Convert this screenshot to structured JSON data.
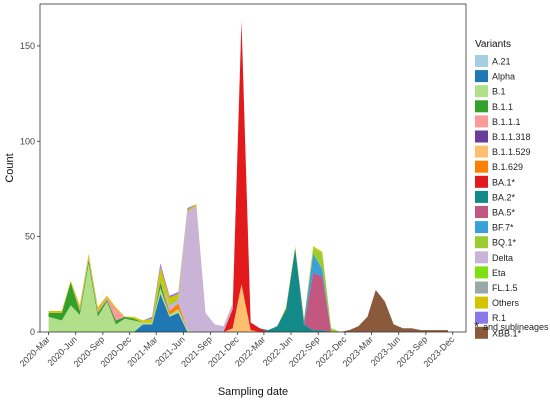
{
  "chart_data": {
    "type": "area",
    "stacked": true,
    "xlabel": "Sampling date",
    "ylabel": "Count",
    "ylim": [
      0,
      172
    ],
    "yticks": [
      0,
      50,
      100,
      150
    ],
    "xlim": [
      "2020-02-01",
      "2024-01-15"
    ],
    "xticks": [
      "2020-Mar",
      "2020-Jun",
      "2020-Sep",
      "2020-Dec",
      "2021-Mar",
      "2021-Jun",
      "2021-Sep",
      "2021-Dec",
      "2022-Mar",
      "2022-Jun",
      "2022-Sep",
      "2022-Dec",
      "2023-Mar",
      "2023-Jun",
      "2023-Sep",
      "2023-Dec"
    ],
    "grid": false,
    "legend_title": "Variants",
    "legend_position": "right",
    "footnote_star": "*",
    "footnote_text": "and sublineages",
    "x": [
      "2020-03-01",
      "2020-04-15",
      "2020-05-15",
      "2020-06-15",
      "2020-07-15",
      "2020-08-15",
      "2020-09-15",
      "2020-10-15",
      "2020-11-15",
      "2020-12-15",
      "2021-01-15",
      "2021-02-15",
      "2021-03-15",
      "2021-04-15",
      "2021-05-15",
      "2021-06-15",
      "2021-07-15",
      "2021-08-15",
      "2021-09-15",
      "2021-10-15",
      "2021-11-15",
      "2021-12-15",
      "2022-01-15",
      "2022-02-15",
      "2022-03-15",
      "2022-04-15",
      "2022-05-15",
      "2022-06-15",
      "2022-07-15",
      "2022-08-15",
      "2022-09-15",
      "2022-10-15",
      "2022-11-15",
      "2022-12-15",
      "2023-01-15",
      "2023-02-15",
      "2023-03-15",
      "2023-04-15",
      "2023-05-15",
      "2023-06-15",
      "2023-07-15",
      "2023-08-15",
      "2023-09-15",
      "2023-10-15",
      "2023-11-15"
    ],
    "series": [
      {
        "name": "A.21",
        "color": "#a6cee3",
        "values": [
          0,
          0,
          0,
          0,
          0,
          0,
          0,
          0,
          0,
          0,
          0,
          0,
          0,
          0,
          0,
          0,
          0,
          0,
          0,
          0,
          0,
          0,
          0,
          0,
          0,
          0,
          0,
          0,
          0,
          0,
          0,
          0,
          0,
          0,
          0,
          0,
          0,
          0,
          0,
          0,
          0,
          0,
          0,
          0,
          0
        ]
      },
      {
        "name": "Alpha",
        "color": "#1f78b4",
        "values": [
          0,
          0,
          0,
          0,
          0,
          0,
          0,
          0,
          0,
          0,
          4,
          4,
          20,
          8,
          10,
          0,
          0,
          0,
          0,
          0,
          0,
          0,
          0,
          0,
          0,
          0,
          0,
          0,
          0,
          0,
          0,
          0,
          0,
          0,
          0,
          0,
          0,
          0,
          0,
          0,
          0,
          0,
          0,
          0,
          0
        ]
      },
      {
        "name": "B.1",
        "color": "#b2df8a",
        "values": [
          8,
          6,
          14,
          9,
          36,
          8,
          16,
          4,
          7,
          6,
          1,
          1,
          3,
          1,
          2,
          1,
          0,
          0,
          0,
          0,
          0,
          0,
          0,
          0,
          0,
          0,
          0,
          0,
          0,
          0,
          0,
          0,
          0,
          0,
          0,
          0,
          0,
          0,
          0,
          0,
          0,
          0,
          0,
          0,
          0
        ]
      },
      {
        "name": "B.1.1",
        "color": "#33a02c",
        "values": [
          2,
          4,
          12,
          2,
          2,
          2,
          1,
          2,
          1,
          1,
          0,
          0,
          3,
          0,
          0,
          0,
          0,
          0,
          0,
          0,
          0,
          0,
          0,
          0,
          0,
          0,
          0,
          0,
          0,
          0,
          0,
          0,
          0,
          0,
          0,
          0,
          0,
          0,
          0,
          0,
          0,
          0,
          0,
          0,
          0
        ]
      },
      {
        "name": "B.1.1.1",
        "color": "#fb9a99",
        "values": [
          0,
          0,
          0,
          1,
          1,
          1,
          1,
          6,
          0,
          0,
          0,
          0,
          0,
          0,
          0,
          0,
          0,
          0,
          0,
          0,
          0,
          0,
          0,
          0,
          0,
          0,
          0,
          0,
          0,
          0,
          0,
          0,
          0,
          0,
          0,
          0,
          0,
          0,
          0,
          0,
          0,
          0,
          0,
          0,
          0
        ]
      },
      {
        "name": "B.1.1.318",
        "color": "#6a3d9a",
        "values": [
          0,
          0,
          0,
          0,
          0,
          0,
          0,
          0,
          0,
          0,
          0,
          0,
          0,
          0,
          0,
          0,
          0,
          0,
          0,
          0,
          0,
          0,
          0,
          0,
          0,
          0,
          0,
          0,
          0,
          0,
          0,
          0,
          0,
          0,
          0,
          0,
          0,
          0,
          0,
          0,
          0,
          0,
          0,
          0,
          0
        ]
      },
      {
        "name": "B.1.1.529",
        "color": "#fdbf6f",
        "values": [
          0,
          0,
          0,
          0,
          0,
          0,
          0,
          0,
          0,
          0,
          0,
          0,
          0,
          0,
          0,
          0,
          0,
          0,
          0,
          0,
          2,
          25,
          1,
          0,
          0,
          0,
          0,
          0,
          0,
          0,
          0,
          0,
          0,
          0,
          0,
          0,
          0,
          0,
          0,
          0,
          0,
          0,
          0,
          0,
          0
        ]
      },
      {
        "name": "B.1.629",
        "color": "#ff7f00",
        "values": [
          0,
          0,
          0,
          0,
          0,
          0,
          0,
          0,
          0,
          0,
          0,
          0,
          1,
          2,
          3,
          0,
          0,
          0,
          0,
          0,
          0,
          0,
          0,
          0,
          0,
          0,
          0,
          0,
          0,
          0,
          0,
          0,
          0,
          0,
          0,
          0,
          0,
          0,
          0,
          0,
          0,
          0,
          0,
          0,
          0
        ]
      },
      {
        "name": "BA.1*",
        "color": "#e31a1c",
        "values": [
          0,
          0,
          0,
          0,
          0,
          0,
          0,
          0,
          0,
          0,
          0,
          0,
          0,
          0,
          0,
          0,
          0,
          0,
          0,
          0,
          10,
          138,
          4,
          2,
          0,
          0,
          0,
          0,
          0,
          0,
          0,
          0,
          0,
          0,
          0,
          0,
          0,
          0,
          0,
          0,
          0,
          0,
          0,
          0,
          0
        ]
      },
      {
        "name": "BA.2*",
        "color": "#138a8a",
        "values": [
          0,
          0,
          0,
          0,
          0,
          0,
          0,
          0,
          0,
          0,
          0,
          0,
          0,
          0,
          0,
          0,
          0,
          0,
          0,
          0,
          0,
          0,
          0,
          0,
          1,
          3,
          12,
          44,
          4,
          1,
          1,
          0,
          0,
          0,
          0,
          0,
          0,
          0,
          0,
          0,
          0,
          0,
          0,
          0,
          0
        ]
      },
      {
        "name": "BA.5*",
        "color": "#c2577f",
        "values": [
          0,
          0,
          0,
          0,
          0,
          0,
          0,
          0,
          0,
          0,
          0,
          0,
          0,
          0,
          0,
          0,
          0,
          0,
          0,
          0,
          0,
          0,
          0,
          0,
          0,
          0,
          0,
          0,
          0,
          30,
          28,
          0,
          0,
          0,
          0,
          0,
          0,
          0,
          0,
          0,
          0,
          0,
          0,
          0,
          0
        ]
      },
      {
        "name": "BF.7*",
        "color": "#3aa0dc",
        "values": [
          0,
          0,
          0,
          0,
          0,
          0,
          0,
          0,
          0,
          0,
          0,
          0,
          0,
          0,
          0,
          0,
          0,
          0,
          0,
          0,
          0,
          0,
          0,
          0,
          0,
          0,
          0,
          0,
          2,
          10,
          4,
          0,
          0,
          0,
          0,
          0,
          0,
          0,
          0,
          0,
          0,
          0,
          0,
          0,
          0
        ]
      },
      {
        "name": "BQ.1*",
        "color": "#9acd32",
        "values": [
          0,
          0,
          0,
          0,
          0,
          0,
          0,
          0,
          0,
          0,
          0,
          0,
          0,
          0,
          0,
          0,
          0,
          0,
          0,
          0,
          0,
          0,
          0,
          0,
          0,
          0,
          0,
          0,
          0,
          3,
          8,
          2,
          0,
          0,
          0,
          0,
          0,
          0,
          0,
          0,
          0,
          0,
          0,
          0,
          0
        ]
      },
      {
        "name": "Delta",
        "color": "#c9b3d6",
        "values": [
          0,
          0,
          0,
          0,
          0,
          0,
          0,
          0,
          0,
          0,
          0,
          0,
          0,
          3,
          2,
          62,
          66,
          10,
          4,
          3,
          3,
          0,
          0,
          0,
          0,
          0,
          0,
          0,
          0,
          0,
          0,
          0,
          0,
          0,
          0,
          0,
          0,
          0,
          0,
          0,
          0,
          0,
          0,
          0,
          0
        ]
      },
      {
        "name": "Eta",
        "color": "#7ce011",
        "values": [
          0,
          0,
          0,
          0,
          0,
          0,
          0,
          0,
          0,
          0,
          0,
          0,
          2,
          1,
          1,
          0,
          0,
          0,
          0,
          0,
          0,
          0,
          0,
          0,
          0,
          0,
          0,
          0,
          0,
          0,
          0,
          0,
          0,
          0,
          0,
          0,
          0,
          0,
          0,
          0,
          0,
          0,
          0,
          0,
          0
        ]
      },
      {
        "name": "FL.1.5",
        "color": "#99aaa6",
        "values": [
          0,
          0,
          0,
          0,
          0,
          0,
          0,
          0,
          0,
          0,
          0,
          0,
          0,
          0,
          0,
          0,
          0,
          0,
          0,
          0,
          0,
          0,
          0,
          0,
          0,
          0,
          0,
          0,
          0,
          0,
          0,
          0,
          0,
          0,
          0,
          0,
          0,
          0,
          0,
          0,
          0,
          0,
          0,
          0,
          0
        ]
      },
      {
        "name": "Others",
        "color": "#d4c400",
        "values": [
          1,
          1,
          1,
          2,
          2,
          2,
          1,
          1,
          0,
          1,
          1,
          2,
          5,
          3,
          2,
          1,
          1,
          0,
          0,
          0,
          0,
          0,
          0,
          0,
          0,
          0,
          1,
          1,
          1,
          1,
          1,
          0,
          0,
          0,
          0,
          0,
          0,
          0,
          0,
          0,
          0,
          0,
          0,
          0,
          0
        ]
      },
      {
        "name": "R.1",
        "color": "#8b78e8",
        "values": [
          0,
          0,
          0,
          0,
          0,
          0,
          0,
          0,
          0,
          0,
          0,
          1,
          2,
          1,
          1,
          1,
          0,
          0,
          0,
          0,
          0,
          0,
          0,
          0,
          0,
          0,
          0,
          0,
          0,
          0,
          0,
          0,
          0,
          0,
          0,
          0,
          0,
          0,
          0,
          0,
          0,
          0,
          0,
          0,
          0
        ]
      },
      {
        "name": "XBB.1*",
        "color": "#8b5a3c",
        "values": [
          0,
          0,
          0,
          0,
          0,
          0,
          0,
          0,
          0,
          0,
          0,
          0,
          0,
          0,
          0,
          0,
          0,
          0,
          0,
          0,
          0,
          0,
          0,
          0,
          0,
          0,
          0,
          0,
          0,
          0,
          0,
          0,
          0,
          1,
          3,
          8,
          22,
          16,
          4,
          2,
          2,
          1,
          1,
          1,
          1
        ]
      }
    ]
  }
}
